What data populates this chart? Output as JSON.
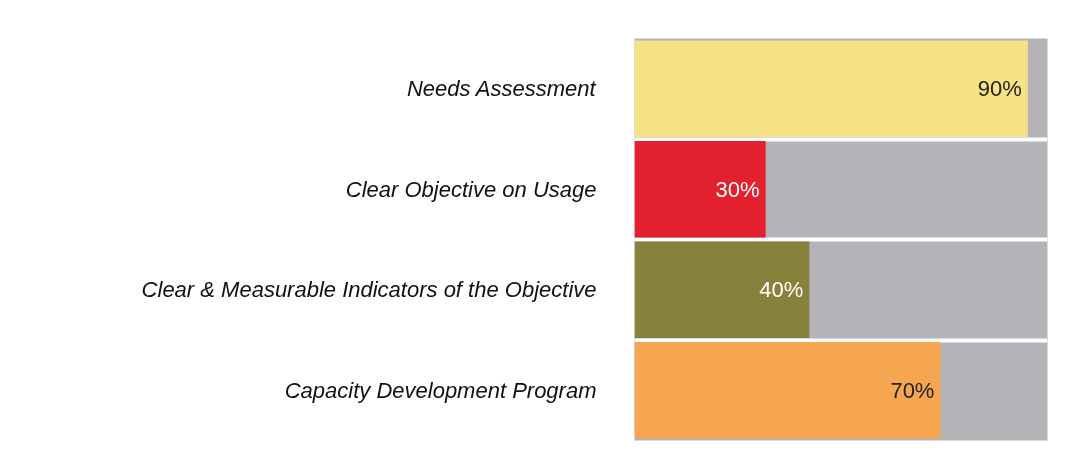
{
  "chart_data": {
    "type": "bar",
    "orientation": "horizontal",
    "categories": [
      "Needs Assessment",
      "Clear Objective on Usage",
      "Clear & Measurable Indicators of the Objective",
      "Capacity Development Program"
    ],
    "values": [
      90,
      30,
      40,
      70
    ],
    "value_labels": [
      "90%",
      "30%",
      "40%",
      "70%"
    ],
    "colors": [
      "#f5e282",
      "#e3202e",
      "#86813b",
      "#f6a64e"
    ],
    "tick_labels": "y",
    "grid": "y"
  }
}
